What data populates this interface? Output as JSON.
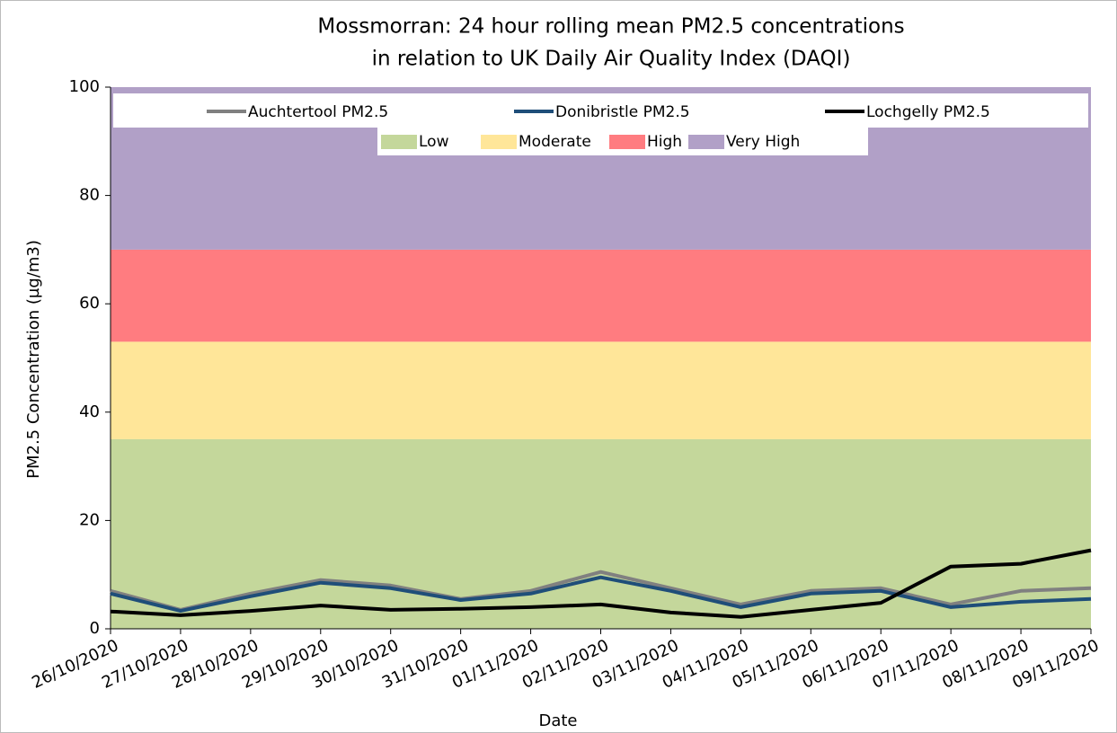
{
  "chart_data": {
    "type": "line",
    "title": [
      "Mossmorran: 24 hour rolling mean PM2.5 concentrations",
      "in relation to UK Daily Air Quality Index (DAQI)"
    ],
    "x_label": "Date",
    "y_label": "PM2.5 Concentration (µg/m3)",
    "x": [
      "26/10/2020",
      "27/10/2020",
      "28/10/2020",
      "29/10/2020",
      "30/10/2020",
      "31/10/2020",
      "01/11/2020",
      "02/11/2020",
      "03/11/2020",
      "04/11/2020",
      "05/11/2020",
      "06/11/2020",
      "07/11/2020",
      "08/11/2020",
      "09/11/2020"
    ],
    "ylim": [
      0,
      100
    ],
    "yticks": [
      0,
      20,
      40,
      60,
      80,
      100
    ],
    "bands": [
      {
        "name": "Low",
        "color": "#c4d79b",
        "range": [
          0,
          35
        ]
      },
      {
        "name": "Moderate",
        "color": "#ffe699",
        "range": [
          35,
          53
        ]
      },
      {
        "name": "High",
        "color": "#ff7c80",
        "range": [
          53,
          70
        ]
      },
      {
        "name": "Very High",
        "color": "#b1a0c7",
        "range": [
          70,
          100
        ]
      }
    ],
    "series": [
      {
        "name": "Auchtertool PM2.5",
        "color": "#808080",
        "values": [
          7,
          3.5,
          6.5,
          9,
          8,
          5.5,
          7,
          10.5,
          7.5,
          4.5,
          7,
          7.5,
          4.5,
          7,
          7.5
        ]
      },
      {
        "name": "Donibristle PM2.5",
        "color": "#1f4e79",
        "values": [
          6.5,
          3.3,
          6,
          8.5,
          7.5,
          5.3,
          6.5,
          9.5,
          7,
          4,
          6.5,
          7,
          4,
          5,
          5.5
        ]
      },
      {
        "name": "Lochgelly PM2.5",
        "color": "#000000",
        "values": [
          3.2,
          2.5,
          3.3,
          4.3,
          3.5,
          3.7,
          4,
          4.5,
          3,
          2.2,
          3.5,
          4.8,
          11.5,
          12,
          14.5
        ]
      }
    ]
  }
}
